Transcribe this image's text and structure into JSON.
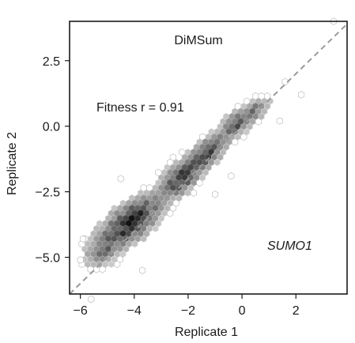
{
  "chart_data": {
    "type": "hexbin-scatter",
    "title": "DiMSum",
    "annotation": "Fitness r = 0.91",
    "gene_label": "SUMO1",
    "xlabel": "Replicate 1",
    "ylabel": "Replicate 2",
    "xlim": [
      -6.4,
      3.9
    ],
    "ylim": [
      -6.4,
      4.0
    ],
    "xticks": [
      -6,
      -4,
      -2,
      0,
      2
    ],
    "xtick_labels": [
      "−6",
      "−4",
      "−2",
      "0",
      "2"
    ],
    "yticks": [
      -5.0,
      -2.5,
      0.0,
      2.5
    ],
    "ytick_labels": [
      "−5.0",
      "−2.5",
      "0.0",
      "2.5"
    ],
    "correlation_r": 0.91,
    "identity_line": {
      "slope": 1,
      "intercept": 0,
      "style": "dashed",
      "color": "#9a9a9a"
    },
    "grid": false,
    "density_cores": [
      {
        "x": -4.1,
        "y": -3.6,
        "sx": 1.0,
        "sy": 0.75,
        "n": 90,
        "level": 0.9
      },
      {
        "x": -2.2,
        "y": -2.0,
        "sx": 0.6,
        "sy": 0.6,
        "n": 60,
        "level": 0.75
      },
      {
        "x": -1.2,
        "y": -1.0,
        "sx": 0.5,
        "sy": 0.5,
        "n": 45,
        "level": 0.7
      },
      {
        "x": -0.3,
        "y": 0.1,
        "sx": 0.45,
        "sy": 0.4,
        "n": 40,
        "level": 0.65
      },
      {
        "x": 0.6,
        "y": 0.6,
        "sx": 0.45,
        "sy": 0.35,
        "n": 30,
        "level": 0.45
      },
      {
        "x": -5.2,
        "y": -4.8,
        "sx": 0.5,
        "sy": 0.5,
        "n": 25,
        "level": 0.4
      }
    ],
    "outliers": [
      {
        "x": 3.4,
        "y": 4.0
      },
      {
        "x": 1.6,
        "y": 1.7
      },
      {
        "x": 2.2,
        "y": 1.2
      },
      {
        "x": -5.6,
        "y": -6.6
      },
      {
        "x": -5.9,
        "y": -4.3
      },
      {
        "x": -3.7,
        "y": -5.5
      },
      {
        "x": -1.0,
        "y": -2.6
      },
      {
        "x": -0.4,
        "y": -1.9
      },
      {
        "x": -6.0,
        "y": -5.1
      },
      {
        "x": -4.5,
        "y": -2.0
      },
      {
        "x": 1.4,
        "y": 0.2
      }
    ]
  },
  "colors": {
    "hex_dark": "#111111",
    "hex_light": "#e4e4e4",
    "hex_outline": "#bdbdbd"
  }
}
